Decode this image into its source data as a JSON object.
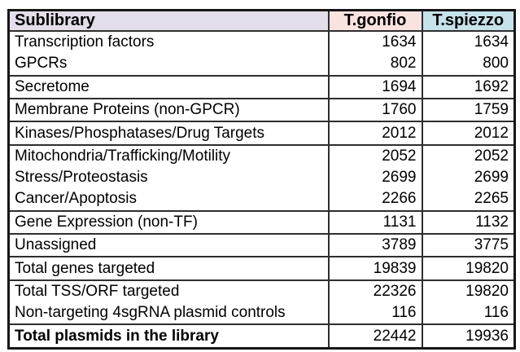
{
  "table": {
    "headers": {
      "sublibrary": "Sublibrary",
      "gonfio": "T.gonfio",
      "spiezzo": "T.spiezzo"
    },
    "rows": [
      {
        "label": "Transcription factors",
        "gonfio": "1634",
        "spiezzo": "1634"
      },
      {
        "label": "GPCRs",
        "gonfio": "802",
        "spiezzo": "800"
      },
      {
        "label": "Secretome",
        "gonfio": "1694",
        "spiezzo": "1692"
      },
      {
        "label": "Membrane Proteins (non-GPCR)",
        "gonfio": "1760",
        "spiezzo": "1759"
      },
      {
        "label": "Kinases/Phosphatases/Drug Targets",
        "gonfio": "2012",
        "spiezzo": "2012"
      },
      {
        "label": "Mitochondria/Trafficking/Motility",
        "gonfio": "2052",
        "spiezzo": "2052"
      },
      {
        "label": "Stress/Proteostasis",
        "gonfio": "2699",
        "spiezzo": "2699"
      },
      {
        "label": "Cancer/Apoptosis",
        "gonfio": "2266",
        "spiezzo": "2265"
      },
      {
        "label": "Gene Expression (non-TF)",
        "gonfio": "1131",
        "spiezzo": "1132"
      },
      {
        "label": "Unassigned",
        "gonfio": "3789",
        "spiezzo": "3775"
      },
      {
        "label": "Total genes targeted",
        "gonfio": "19839",
        "spiezzo": "19820"
      },
      {
        "label": "Total TSS/ORF targeted",
        "gonfio": "22326",
        "spiezzo": "19820"
      },
      {
        "label": "Non-targeting 4sgRNA plasmid controls",
        "gonfio": "116",
        "spiezzo": "116"
      },
      {
        "label": "Total plasmids in the library",
        "gonfio": "22442",
        "spiezzo": "19936"
      }
    ]
  },
  "colors": {
    "header_sublibrary_bg": "#e3dee9",
    "header_gonfio_bg": "#f8e3e0",
    "header_spiezzo_bg": "#c6e2eb",
    "border": "#2e2e2e",
    "outer_border": "#161616",
    "text": "#000000",
    "background": "#ffffff"
  },
  "chart_data": {
    "type": "table",
    "title": "",
    "columns": [
      "Sublibrary",
      "T.gonfio",
      "T.spiezzo"
    ],
    "rows": [
      [
        "Transcription factors",
        1634,
        1634
      ],
      [
        "GPCRs",
        802,
        800
      ],
      [
        "Secretome",
        1694,
        1692
      ],
      [
        "Membrane Proteins (non-GPCR)",
        1760,
        1759
      ],
      [
        "Kinases/Phosphatases/Drug Targets",
        2012,
        2012
      ],
      [
        "Mitochondria/Trafficking/Motility",
        2052,
        2052
      ],
      [
        "Stress/Proteostasis",
        2699,
        2699
      ],
      [
        "Cancer/Apoptosis",
        2266,
        2265
      ],
      [
        "Gene Expression (non-TF)",
        1131,
        1132
      ],
      [
        "Unassigned",
        3789,
        3775
      ],
      [
        "Total genes targeted",
        19839,
        19820
      ],
      [
        "Total TSS/ORF targeted",
        22326,
        19820
      ],
      [
        "Non-targeting 4sgRNA plasmid controls",
        116,
        116
      ],
      [
        "Total plasmids in the library",
        22442,
        19936
      ]
    ],
    "row_groups_without_divider_above": [
      "GPCRs",
      "Stress/Proteostasis",
      "Cancer/Apoptosis",
      "Non-targeting 4sgRNA plasmid controls"
    ],
    "bold_rows": [
      "Total plasmids in the library"
    ]
  }
}
